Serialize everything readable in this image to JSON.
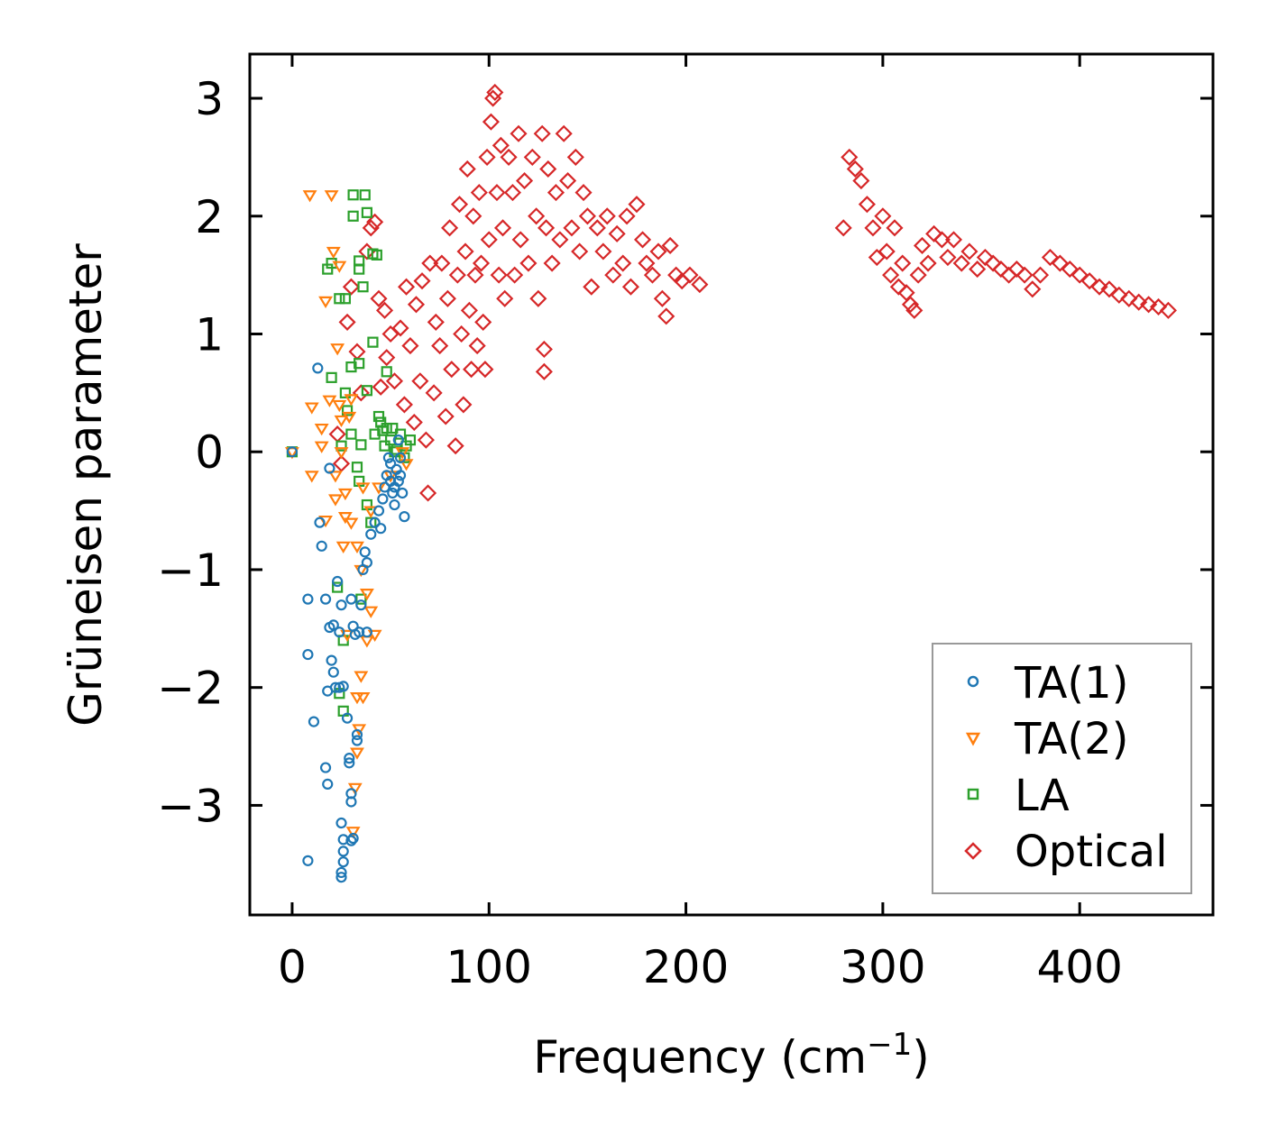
{
  "chart_data": {
    "type": "scatter",
    "title": "",
    "xlabel": "Frequency (cm",
    "xlabel_sup": "−1",
    "xlabel_end": ")",
    "ylabel": "Grüneisen parameter",
    "xlim": [
      -21.5,
      467.7
    ],
    "ylim": [
      -3.93,
      3.375
    ],
    "xticks": [
      0,
      100,
      200,
      300,
      400
    ],
    "xtick_labels": [
      "0",
      "100",
      "200",
      "300",
      "400"
    ],
    "yticks": [
      3,
      2,
      1,
      0,
      -1,
      -2,
      -3
    ],
    "ytick_labels": [
      "3",
      "2",
      "1",
      "0",
      "−1",
      "−2",
      "−3"
    ],
    "grid": false,
    "legend_position": "bottom-right",
    "series": [
      {
        "name": "TA(1)",
        "marker": "circle",
        "color": "#1f77b4",
        "points": [
          [
            0,
            0
          ],
          [
            8,
            -3.47
          ],
          [
            8,
            -1.25
          ],
          [
            8,
            -1.72
          ],
          [
            11,
            -2.29
          ],
          [
            13,
            0.71
          ],
          [
            14,
            -0.6
          ],
          [
            15,
            -0.8
          ],
          [
            17,
            -1.25
          ],
          [
            17,
            -2.68
          ],
          [
            18,
            -2.82
          ],
          [
            18,
            -2.03
          ],
          [
            19,
            -0.14
          ],
          [
            19,
            -1.49
          ],
          [
            20,
            -1.77
          ],
          [
            21,
            -1.87
          ],
          [
            21,
            -1.47
          ],
          [
            22,
            -2.0
          ],
          [
            23,
            -1.1
          ],
          [
            24,
            -1.53
          ],
          [
            25,
            -3.15
          ],
          [
            25,
            -3.57
          ],
          [
            25,
            -3.61
          ],
          [
            26,
            -3.39
          ],
          [
            26,
            -3.48
          ],
          [
            26,
            -3.29
          ],
          [
            24,
            -2.0
          ],
          [
            26,
            -1.99
          ],
          [
            25,
            -1.3
          ],
          [
            28,
            -2.26
          ],
          [
            29,
            -2.6
          ],
          [
            29,
            -2.64
          ],
          [
            30,
            -1.25
          ],
          [
            30,
            -2.9
          ],
          [
            30,
            -2.97
          ],
          [
            30,
            -3.3
          ],
          [
            31,
            -3.28
          ],
          [
            31,
            -1.48
          ],
          [
            32,
            -1.55
          ],
          [
            33,
            -2.4
          ],
          [
            33,
            -2.45
          ],
          [
            34,
            -1.53
          ],
          [
            35,
            -1.3
          ],
          [
            36,
            -1.0
          ],
          [
            37,
            -0.85
          ],
          [
            38,
            -0.94
          ],
          [
            38,
            -1.53
          ],
          [
            40,
            -0.7
          ],
          [
            42,
            -0.6
          ],
          [
            44,
            -0.5
          ],
          [
            45,
            -0.65
          ],
          [
            46,
            -0.4
          ],
          [
            48,
            -0.2
          ],
          [
            50,
            -0.1
          ],
          [
            52,
            -0.3
          ],
          [
            54,
            0.1
          ],
          [
            55,
            -0.2
          ],
          [
            57,
            -0.55
          ],
          [
            52,
            -0.45
          ],
          [
            50,
            -0.25
          ],
          [
            56,
            -0.35
          ],
          [
            53,
            -0.15
          ],
          [
            49,
            -0.05
          ],
          [
            51,
            -0.35
          ],
          [
            54,
            -0.25
          ],
          [
            47,
            -0.3
          ],
          [
            55,
            -0.05
          ]
        ]
      },
      {
        "name": "TA(2)",
        "marker": "triangle_down",
        "color": "#ff7f0e",
        "points": [
          [
            0,
            0
          ],
          [
            10,
            -0.2
          ],
          [
            9,
            2.18
          ],
          [
            20,
            2.18
          ],
          [
            21,
            1.7
          ],
          [
            24,
            1.58
          ],
          [
            17,
            1.28
          ],
          [
            23,
            0.88
          ],
          [
            10,
            0.38
          ],
          [
            15,
            0.05
          ],
          [
            15,
            0.2
          ],
          [
            19,
            0.44
          ],
          [
            25,
            0.27
          ],
          [
            22,
            -0.2
          ],
          [
            22,
            -0.4
          ],
          [
            27,
            -0.35
          ],
          [
            27,
            -0.55
          ],
          [
            17,
            -0.58
          ],
          [
            30,
            -0.6
          ],
          [
            33,
            -0.8
          ],
          [
            35,
            -1.0
          ],
          [
            38,
            -1.2
          ],
          [
            40,
            -1.35
          ],
          [
            42,
            -1.55
          ],
          [
            38,
            -1.6
          ],
          [
            35,
            -1.9
          ],
          [
            33,
            -2.08
          ],
          [
            36,
            -2.08
          ],
          [
            34,
            -2.35
          ],
          [
            33,
            -2.55
          ],
          [
            32,
            -2.85
          ],
          [
            31,
            -3.22
          ],
          [
            28,
            -1.55
          ],
          [
            25,
            0.0
          ],
          [
            29,
            0.3
          ],
          [
            40,
            -0.5
          ],
          [
            44,
            -0.3
          ],
          [
            50,
            -0.2
          ],
          [
            56,
            0.0
          ],
          [
            58,
            -0.1
          ],
          [
            26,
            -0.8
          ],
          [
            36,
            -0.3
          ],
          [
            30,
            0.45
          ],
          [
            24,
            0.4
          ]
        ]
      },
      {
        "name": "LA",
        "marker": "square",
        "color": "#2ca02c",
        "points": [
          [
            0,
            0
          ],
          [
            18,
            1.55
          ],
          [
            20,
            1.6
          ],
          [
            24,
            1.3
          ],
          [
            27,
            1.3
          ],
          [
            31,
            2.18
          ],
          [
            31,
            2.0
          ],
          [
            34,
            1.55
          ],
          [
            34,
            1.62
          ],
          [
            37,
            2.18
          ],
          [
            38,
            2.03
          ],
          [
            36,
            1.4
          ],
          [
            41,
            1.68
          ],
          [
            43,
            1.67
          ],
          [
            20,
            0.63
          ],
          [
            27,
            0.5
          ],
          [
            30,
            0.72
          ],
          [
            34,
            0.75
          ],
          [
            38,
            0.52
          ],
          [
            41,
            0.93
          ],
          [
            48,
            0.68
          ],
          [
            25,
            0.05
          ],
          [
            30,
            0.15
          ],
          [
            33,
            -0.13
          ],
          [
            34,
            -0.25
          ],
          [
            28,
            0.35
          ],
          [
            35,
            0.06
          ],
          [
            42,
            0.15
          ],
          [
            45,
            0.25
          ],
          [
            48,
            0.2
          ],
          [
            50,
            0.1
          ],
          [
            52,
            0.0
          ],
          [
            55,
            0.15
          ],
          [
            58,
            0.05
          ],
          [
            60,
            0.1
          ],
          [
            44,
            0.3
          ],
          [
            47,
            0.05
          ],
          [
            35,
            -1.25
          ],
          [
            23,
            -1.15
          ],
          [
            26,
            -1.6
          ],
          [
            26,
            -2.2
          ],
          [
            24,
            -2.05
          ],
          [
            40,
            -0.6
          ],
          [
            38,
            -0.45
          ],
          [
            53,
            0.02
          ],
          [
            46,
            0.18
          ],
          [
            51,
            0.2
          ],
          [
            57,
            -0.05
          ]
        ]
      },
      {
        "name": "Optical",
        "marker": "diamond",
        "color": "#d62728",
        "points": [
          [
            23,
            0.15
          ],
          [
            25,
            -0.1
          ],
          [
            28,
            1.1
          ],
          [
            30,
            1.4
          ],
          [
            33,
            0.85
          ],
          [
            35,
            0.5
          ],
          [
            38,
            1.7
          ],
          [
            40,
            1.9
          ],
          [
            42,
            1.95
          ],
          [
            44,
            1.3
          ],
          [
            45,
            0.55
          ],
          [
            47,
            1.2
          ],
          [
            48,
            0.8
          ],
          [
            50,
            1.0
          ],
          [
            52,
            0.6
          ],
          [
            55,
            1.05
          ],
          [
            57,
            0.4
          ],
          [
            58,
            1.4
          ],
          [
            60,
            0.9
          ],
          [
            62,
            0.25
          ],
          [
            63,
            1.25
          ],
          [
            65,
            0.6
          ],
          [
            66,
            1.45
          ],
          [
            68,
            0.1
          ],
          [
            69,
            -0.35
          ],
          [
            70,
            1.6
          ],
          [
            72,
            0.5
          ],
          [
            73,
            1.1
          ],
          [
            75,
            0.9
          ],
          [
            76,
            1.6
          ],
          [
            78,
            0.3
          ],
          [
            79,
            1.3
          ],
          [
            80,
            1.9
          ],
          [
            81,
            0.7
          ],
          [
            83,
            0.05
          ],
          [
            84,
            1.5
          ],
          [
            85,
            2.1
          ],
          [
            86,
            1.0
          ],
          [
            87,
            0.4
          ],
          [
            88,
            1.7
          ],
          [
            89,
            2.4
          ],
          [
            90,
            1.2
          ],
          [
            91,
            0.7
          ],
          [
            92,
            2.0
          ],
          [
            93,
            1.5
          ],
          [
            94,
            0.9
          ],
          [
            95,
            2.2
          ],
          [
            96,
            1.6
          ],
          [
            97,
            1.1
          ],
          [
            98,
            0.7
          ],
          [
            99,
            2.5
          ],
          [
            100,
            1.8
          ],
          [
            101,
            2.8
          ],
          [
            102,
            3.0
          ],
          [
            103,
            3.05
          ],
          [
            104,
            2.2
          ],
          [
            105,
            1.5
          ],
          [
            106,
            2.6
          ],
          [
            107,
            1.9
          ],
          [
            108,
            1.3
          ],
          [
            110,
            2.5
          ],
          [
            112,
            2.2
          ],
          [
            113,
            1.5
          ],
          [
            115,
            2.7
          ],
          [
            116,
            1.8
          ],
          [
            118,
            2.3
          ],
          [
            120,
            1.6
          ],
          [
            122,
            2.5
          ],
          [
            124,
            2.0
          ],
          [
            125,
            1.3
          ],
          [
            127,
            2.7
          ],
          [
            128,
            0.87
          ],
          [
            128,
            0.68
          ],
          [
            129,
            1.9
          ],
          [
            130,
            2.4
          ],
          [
            132,
            1.6
          ],
          [
            134,
            2.2
          ],
          [
            136,
            1.8
          ],
          [
            138,
            2.7
          ],
          [
            140,
            2.3
          ],
          [
            142,
            1.9
          ],
          [
            144,
            2.5
          ],
          [
            146,
            1.7
          ],
          [
            148,
            2.2
          ],
          [
            150,
            2.0
          ],
          [
            152,
            1.4
          ],
          [
            155,
            1.9
          ],
          [
            158,
            1.7
          ],
          [
            160,
            2.0
          ],
          [
            163,
            1.5
          ],
          [
            165,
            1.85
          ],
          [
            168,
            1.6
          ],
          [
            170,
            2.0
          ],
          [
            172,
            1.4
          ],
          [
            175,
            2.1
          ],
          [
            178,
            1.8
          ],
          [
            180,
            1.6
          ],
          [
            183,
            1.5
          ],
          [
            186,
            1.7
          ],
          [
            188,
            1.3
          ],
          [
            190,
            1.15
          ],
          [
            192,
            1.75
          ],
          [
            195,
            1.5
          ],
          [
            198,
            1.45
          ],
          [
            202,
            1.5
          ],
          [
            207,
            1.42
          ],
          [
            280,
            1.9
          ],
          [
            283,
            2.5
          ],
          [
            286,
            2.4
          ],
          [
            289,
            2.3
          ],
          [
            292,
            2.1
          ],
          [
            295,
            1.9
          ],
          [
            297,
            1.65
          ],
          [
            300,
            2.0
          ],
          [
            302,
            1.7
          ],
          [
            304,
            1.5
          ],
          [
            306,
            1.9
          ],
          [
            308,
            1.4
          ],
          [
            310,
            1.6
          ],
          [
            312,
            1.35
          ],
          [
            314,
            1.25
          ],
          [
            316,
            1.2
          ],
          [
            318,
            1.5
          ],
          [
            320,
            1.75
          ],
          [
            323,
            1.6
          ],
          [
            326,
            1.85
          ],
          [
            330,
            1.8
          ],
          [
            333,
            1.65
          ],
          [
            336,
            1.8
          ],
          [
            340,
            1.6
          ],
          [
            344,
            1.7
          ],
          [
            348,
            1.55
          ],
          [
            352,
            1.65
          ],
          [
            356,
            1.6
          ],
          [
            360,
            1.55
          ],
          [
            364,
            1.5
          ],
          [
            368,
            1.55
          ],
          [
            372,
            1.5
          ],
          [
            376,
            1.38
          ],
          [
            380,
            1.5
          ],
          [
            385,
            1.65
          ],
          [
            390,
            1.6
          ],
          [
            395,
            1.55
          ],
          [
            400,
            1.5
          ],
          [
            405,
            1.45
          ],
          [
            410,
            1.4
          ],
          [
            415,
            1.38
          ],
          [
            420,
            1.33
          ],
          [
            425,
            1.3
          ],
          [
            430,
            1.27
          ],
          [
            435,
            1.25
          ],
          [
            440,
            1.23
          ],
          [
            445,
            1.2
          ]
        ]
      }
    ]
  }
}
